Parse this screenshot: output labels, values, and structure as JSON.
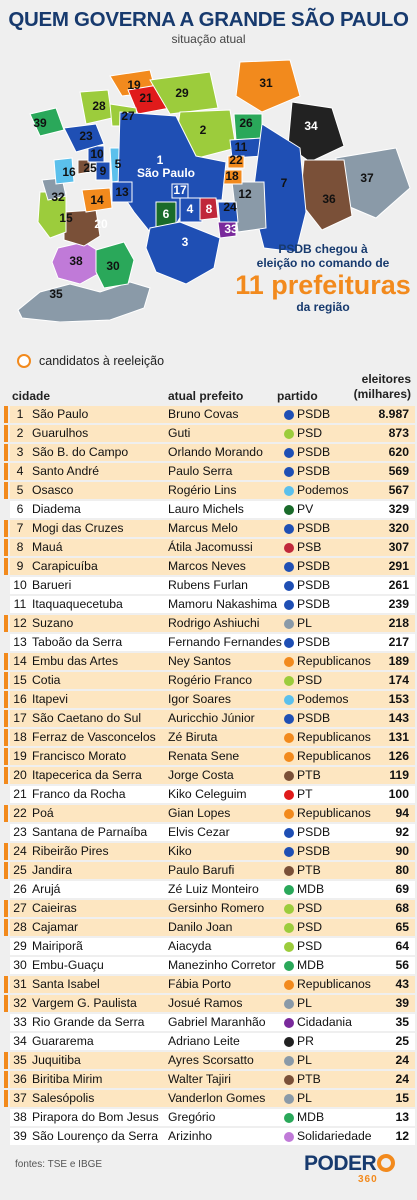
{
  "header": {
    "title": "QUEM GOVERNA A GRANDE SÃO PAULO",
    "subtitle": "situação atual"
  },
  "map": {
    "city_label": "São Paulo",
    "numbers": [
      "1",
      "2",
      "3",
      "4",
      "5",
      "6",
      "7",
      "8",
      "9",
      "10",
      "11",
      "12",
      "13",
      "14",
      "15",
      "16",
      "17",
      "18",
      "19",
      "20",
      "21",
      "22",
      "23",
      "24",
      "25",
      "26",
      "27",
      "28",
      "29",
      "30",
      "31",
      "32",
      "33",
      "34",
      "35",
      "36",
      "37",
      "38",
      "39"
    ]
  },
  "callout": {
    "line1": "PSDB chegou à",
    "line2": "eleição no comando de",
    "highlight": "11 prefeituras",
    "line4": "da região"
  },
  "legend": {
    "label": "candidatos à reeleição"
  },
  "table": {
    "headers": {
      "city": "cidade",
      "mayor": "atual prefeito",
      "party": "partido",
      "voters1": "eleitores",
      "voters2": "(milhares)"
    },
    "rows": [
      {
        "n": "1",
        "city": "São Paulo",
        "mayor": "Bruno Covas",
        "party": "PSDB",
        "voters": "8.987",
        "re": true
      },
      {
        "n": "2",
        "city": "Guarulhos",
        "mayor": "Guti",
        "party": "PSD",
        "voters": "873",
        "re": true
      },
      {
        "n": "3",
        "city": "São B. do Campo",
        "mayor": "Orlando Morando",
        "party": "PSDB",
        "voters": "620",
        "re": true
      },
      {
        "n": "4",
        "city": "Santo André",
        "mayor": "Paulo Serra",
        "party": "PSDB",
        "voters": "569",
        "re": true
      },
      {
        "n": "5",
        "city": "Osasco",
        "mayor": "Rogério Lins",
        "party": "Podemos",
        "voters": "567",
        "re": true
      },
      {
        "n": "6",
        "city": "Diadema",
        "mayor": "Lauro Michels",
        "party": "PV",
        "voters": "329",
        "re": false
      },
      {
        "n": "7",
        "city": "Mogi das Cruzes",
        "mayor": "Marcus Melo",
        "party": "PSDB",
        "voters": "320",
        "re": true
      },
      {
        "n": "8",
        "city": "Mauá",
        "mayor": "Átila Jacomussi",
        "party": "PSB",
        "voters": "307",
        "re": true
      },
      {
        "n": "9",
        "city": "Carapicuíba",
        "mayor": "Marcos Neves",
        "party": "PSDB",
        "voters": "291",
        "re": true
      },
      {
        "n": "10",
        "city": "Barueri",
        "mayor": "Rubens Furlan",
        "party": "PSDB",
        "voters": "261",
        "re": false
      },
      {
        "n": "11",
        "city": "Itaquaquecetuba",
        "mayor": "Mamoru Nakashima",
        "party": "PSDB",
        "voters": "239",
        "re": false
      },
      {
        "n": "12",
        "city": "Suzano",
        "mayor": "Rodrigo Ashiuchi",
        "party": "PL",
        "voters": "218",
        "re": true
      },
      {
        "n": "13",
        "city": "Taboão da Serra",
        "mayor": "Fernando Fernandes",
        "party": "PSDB",
        "voters": "217",
        "re": false
      },
      {
        "n": "14",
        "city": "Embu das Artes",
        "mayor": "Ney Santos",
        "party": "Republicanos",
        "voters": "189",
        "re": true
      },
      {
        "n": "15",
        "city": "Cotia",
        "mayor": "Rogério Franco",
        "party": "PSD",
        "voters": "174",
        "re": true
      },
      {
        "n": "16",
        "city": "Itapevi",
        "mayor": "Igor Soares",
        "party": "Podemos",
        "voters": "153",
        "re": true
      },
      {
        "n": "17",
        "city": "São Caetano do Sul",
        "mayor": "Auricchio Júnior",
        "party": "PSDB",
        "voters": "143",
        "re": true
      },
      {
        "n": "18",
        "city": "Ferraz de Vasconcelos",
        "mayor": "Zé Biruta",
        "party": "Republicanos",
        "voters": "131",
        "re": true
      },
      {
        "n": "19",
        "city": "Francisco Morato",
        "mayor": "Renata Sene",
        "party": "Republicanos",
        "voters": "126",
        "re": true
      },
      {
        "n": "20",
        "city": "Itapecerica da Serra",
        "mayor": "Jorge Costa",
        "party": "PTB",
        "voters": "119",
        "re": true
      },
      {
        "n": "21",
        "city": "Franco da Rocha",
        "mayor": "Kiko Celeguim",
        "party": "PT",
        "voters": "100",
        "re": false
      },
      {
        "n": "22",
        "city": "Poá",
        "mayor": "Gian Lopes",
        "party": "Republicanos",
        "voters": "94",
        "re": true
      },
      {
        "n": "23",
        "city": "Santana de Parnaíba",
        "mayor": "Elvis Cezar",
        "party": "PSDB",
        "voters": "92",
        "re": false
      },
      {
        "n": "24",
        "city": "Ribeirão Pires",
        "mayor": "Kiko",
        "party": "PSDB",
        "voters": "90",
        "re": true
      },
      {
        "n": "25",
        "city": "Jandira",
        "mayor": "Paulo Barufi",
        "party": "PTB",
        "voters": "80",
        "re": true
      },
      {
        "n": "26",
        "city": "Arujá",
        "mayor": "Zé Luiz Monteiro",
        "party": "MDB",
        "voters": "69",
        "re": false
      },
      {
        "n": "27",
        "city": "Caieiras",
        "mayor": "Gersinho Romero",
        "party": "PSD",
        "voters": "68",
        "re": true
      },
      {
        "n": "28",
        "city": "Cajamar",
        "mayor": "Danilo Joan",
        "party": "PSD",
        "voters": "65",
        "re": true
      },
      {
        "n": "29",
        "city": "Mairiporã",
        "mayor": "Aiacyda",
        "party": "PSD",
        "voters": "64",
        "re": false
      },
      {
        "n": "30",
        "city": "Embu-Guaçu",
        "mayor": "Manezinho Corretor",
        "party": "MDB",
        "voters": "56",
        "re": false
      },
      {
        "n": "31",
        "city": "Santa Isabel",
        "mayor": "Fábia Porto",
        "party": "Republicanos",
        "voters": "43",
        "re": true
      },
      {
        "n": "32",
        "city": "Vargem G. Paulista",
        "mayor": "Josué Ramos",
        "party": "PL",
        "voters": "39",
        "re": true
      },
      {
        "n": "33",
        "city": "Rio Grande da Serra",
        "mayor": "Gabriel Maranhão",
        "party": "Cidadania",
        "voters": "35",
        "re": false
      },
      {
        "n": "34",
        "city": "Guararema",
        "mayor": "Adriano Leite",
        "party": "PR",
        "voters": "25",
        "re": false
      },
      {
        "n": "35",
        "city": "Juquitiba",
        "mayor": "Ayres Scorsatto",
        "party": "PL",
        "voters": "24",
        "re": true
      },
      {
        "n": "36",
        "city": "Biritiba Mirim",
        "mayor": "Walter Tajiri",
        "party": "PTB",
        "voters": "24",
        "re": true
      },
      {
        "n": "37",
        "city": "Salesópolis",
        "mayor": "Vanderlon Gomes",
        "party": "PL",
        "voters": "15",
        "re": true
      },
      {
        "n": "38",
        "city": "Pirapora do Bom Jesus",
        "mayor": "Gregório",
        "party": "MDB",
        "voters": "13",
        "re": false
      },
      {
        "n": "39",
        "city": "São Lourenço da Serra",
        "mayor": "Arizinho",
        "party": "Solidariedade",
        "voters": "12",
        "re": false
      }
    ]
  },
  "party_colors": {
    "PSDB": "#1f4fb4",
    "PSD": "#9ccc3c",
    "Podemos": "#5bc0ec",
    "PV": "#1a6b2a",
    "PSB": "#c0283a",
    "PL": "#8a9aa8",
    "Republicanos": "#f28a1d",
    "PTB": "#7a5038",
    "PT": "#e01b1b",
    "MDB": "#2aa85a",
    "Cidadania": "#7a2a9c",
    "PR": "#222222",
    "Solidariedade": "#c07ad8"
  },
  "footer": {
    "source": "fontes: TSE e IBGE",
    "logo_word_a": "PODER",
    "logo_word_b": "360"
  }
}
